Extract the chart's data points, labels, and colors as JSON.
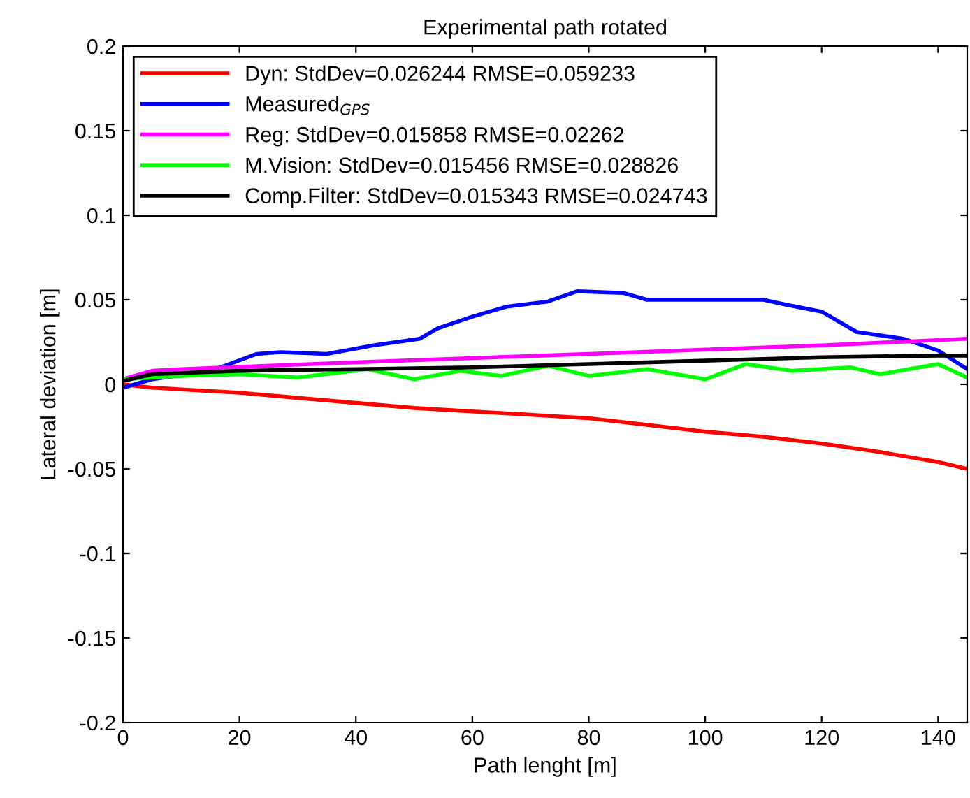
{
  "chart_data": {
    "type": "line",
    "title": "Experimental path rotated",
    "xlabel": "Path lenght [m]",
    "ylabel": "Lateral deviation [m]",
    "xlim": [
      0,
      145
    ],
    "ylim": [
      -0.2,
      0.2
    ],
    "xticks": [
      0,
      20,
      40,
      60,
      80,
      100,
      120,
      140
    ],
    "yticks": [
      -0.2,
      -0.15,
      -0.1,
      -0.05,
      0,
      0.05,
      0.1,
      0.15,
      0.2
    ],
    "grid": false,
    "legend": "top left",
    "series": [
      {
        "name": "Dyn: StdDev=0.026244 RMSE=0.059233",
        "color": "#ff0000",
        "x": [
          0,
          5,
          10,
          20,
          30,
          40,
          50,
          60,
          70,
          80,
          90,
          100,
          110,
          120,
          130,
          140,
          145
        ],
        "values": [
          0,
          -0.002,
          -0.003,
          -0.005,
          -0.008,
          -0.011,
          -0.014,
          -0.016,
          -0.018,
          -0.02,
          -0.024,
          -0.028,
          -0.031,
          -0.035,
          -0.04,
          -0.046,
          -0.05
        ]
      },
      {
        "name": "Measured$_{GPS}$",
        "color": "#0000ff",
        "x": [
          0,
          5,
          15,
          17.5,
          23,
          27,
          35,
          43,
          51,
          54,
          60,
          66,
          73,
          78,
          86,
          90,
          102,
          110,
          114,
          120,
          126,
          134,
          140,
          145
        ],
        "values": [
          -0.002,
          0.003,
          0.008,
          0.011,
          0.018,
          0.019,
          0.018,
          0.023,
          0.027,
          0.033,
          0.04,
          0.046,
          0.049,
          0.055,
          0.054,
          0.05,
          0.05,
          0.05,
          0.047,
          0.043,
          0.031,
          0.027,
          0.02,
          0.009
        ]
      },
      {
        "name": "Reg: StdDev=0.015858 RMSE=0.02262",
        "color": "#ff00ff",
        "x": [
          0,
          5,
          10,
          40,
          80,
          120,
          145
        ],
        "values": [
          0.003,
          0.008,
          0.009,
          0.013,
          0.018,
          0.023,
          0.027
        ]
      },
      {
        "name": "M.Vision: StdDev=0.015456 RMSE=0.028826",
        "color": "#00ff00",
        "x": [
          0,
          10,
          20,
          30,
          42,
          50,
          58,
          65,
          73,
          80,
          90,
          100,
          107,
          115,
          125,
          130,
          140,
          145
        ],
        "values": [
          0.003,
          0.005,
          0.006,
          0.004,
          0.009,
          0.003,
          0.008,
          0.005,
          0.011,
          0.005,
          0.009,
          0.003,
          0.012,
          0.008,
          0.01,
          0.006,
          0.012,
          0.004
        ]
      },
      {
        "name": "Comp.Filter: StdDev=0.015343 RMSE=0.024743",
        "color": "#000000",
        "x": [
          0,
          5,
          20,
          40,
          60,
          80,
          100,
          120,
          140,
          145
        ],
        "values": [
          0.002,
          0.006,
          0.008,
          0.009,
          0.01,
          0.012,
          0.014,
          0.016,
          0.017,
          0.017
        ]
      }
    ]
  }
}
